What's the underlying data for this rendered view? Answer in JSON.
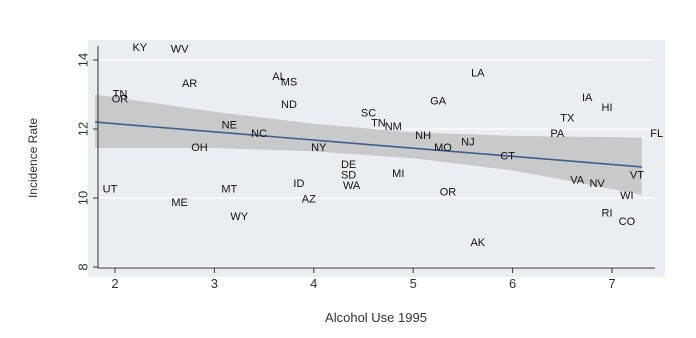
{
  "chart_data": {
    "type": "scatter",
    "title": "",
    "xlabel": "Alcohol Use 1995",
    "ylabel": "Incidence Rate",
    "xlim": [
      1.8,
      7.35
    ],
    "ylim": [
      7.8,
      14.3
    ],
    "xticks": [
      "2",
      "3",
      "4",
      "5",
      "6",
      "7"
    ],
    "yticks": [
      "8",
      "10",
      "12",
      "14"
    ],
    "grid": true,
    "marker": "state labels",
    "points": [
      {
        "label": "KY",
        "x": 2.25,
        "y": 14.35
      },
      {
        "label": "WV",
        "x": 2.65,
        "y": 14.3
      },
      {
        "label": "TN",
        "x": 2.05,
        "y": 13.0
      },
      {
        "label": "OR",
        "x": 2.05,
        "y": 12.85
      },
      {
        "label": "AR",
        "x": 2.75,
        "y": 13.3
      },
      {
        "label": "AL",
        "x": 3.65,
        "y": 13.5
      },
      {
        "label": "MS",
        "x": 3.75,
        "y": 13.35
      },
      {
        "label": "ND",
        "x": 3.75,
        "y": 12.7
      },
      {
        "label": "LA",
        "x": 5.65,
        "y": 13.6
      },
      {
        "label": "GA",
        "x": 5.25,
        "y": 12.8
      },
      {
        "label": "IA",
        "x": 6.75,
        "y": 12.9
      },
      {
        "label": "HI",
        "x": 6.95,
        "y": 12.6
      },
      {
        "label": "NE",
        "x": 3.15,
        "y": 12.1
      },
      {
        "label": "NC",
        "x": 3.45,
        "y": 11.85
      },
      {
        "label": "SC",
        "x": 4.55,
        "y": 12.45
      },
      {
        "label": "TN",
        "x": 4.65,
        "y": 12.15
      },
      {
        "label": "NM",
        "x": 4.8,
        "y": 12.05
      },
      {
        "label": "NH",
        "x": 5.1,
        "y": 11.8
      },
      {
        "label": "TX",
        "x": 6.55,
        "y": 12.3
      },
      {
        "label": "PA",
        "x": 6.45,
        "y": 11.85
      },
      {
        "label": "FL",
        "x": 7.45,
        "y": 11.85
      },
      {
        "label": "OH",
        "x": 2.85,
        "y": 11.45
      },
      {
        "label": "NY",
        "x": 4.05,
        "y": 11.45
      },
      {
        "label": "MO",
        "x": 5.3,
        "y": 11.45
      },
      {
        "label": "NJ",
        "x": 5.55,
        "y": 11.6
      },
      {
        "label": "CT",
        "x": 5.95,
        "y": 11.2
      },
      {
        "label": "DE",
        "x": 4.35,
        "y": 10.95
      },
      {
        "label": "SD",
        "x": 4.35,
        "y": 10.65
      },
      {
        "label": "MI",
        "x": 4.85,
        "y": 10.7
      },
      {
        "label": "WA",
        "x": 4.38,
        "y": 10.35
      },
      {
        "label": "VA",
        "x": 6.65,
        "y": 10.5
      },
      {
        "label": "NV",
        "x": 6.85,
        "y": 10.4
      },
      {
        "label": "VT",
        "x": 7.25,
        "y": 10.65
      },
      {
        "label": "UT",
        "x": 1.95,
        "y": 10.25
      },
      {
        "label": "MT",
        "x": 3.15,
        "y": 10.25
      },
      {
        "label": "ID",
        "x": 3.85,
        "y": 10.4
      },
      {
        "label": "AZ",
        "x": 3.95,
        "y": 9.95
      },
      {
        "label": "OR",
        "x": 5.35,
        "y": 10.15
      },
      {
        "label": "WI",
        "x": 7.15,
        "y": 10.05
      },
      {
        "label": "ME",
        "x": 2.65,
        "y": 9.85
      },
      {
        "label": "WY",
        "x": 3.25,
        "y": 9.45
      },
      {
        "label": "RI",
        "x": 6.95,
        "y": 9.55
      },
      {
        "label": "CO",
        "x": 7.15,
        "y": 9.3
      },
      {
        "label": "AK",
        "x": 5.65,
        "y": 8.7
      }
    ],
    "fit_line": {
      "x": [
        1.8,
        7.3
      ],
      "y": [
        12.2,
        10.9
      ]
    },
    "confidence_band": {
      "x": [
        1.8,
        3.0,
        4.0,
        5.0,
        6.0,
        7.3
      ],
      "upper": [
        13.0,
        12.5,
        12.15,
        11.9,
        11.8,
        11.75
      ],
      "lower": [
        11.45,
        11.45,
        11.35,
        11.15,
        10.8,
        10.1
      ]
    },
    "colors": {
      "panel_bg": "#e9eef3",
      "band": "#c6c6c6",
      "fit_line": "#3d5f8a",
      "gridline": "#ffffff",
      "text": "#111111",
      "axis": "#333333"
    }
  }
}
